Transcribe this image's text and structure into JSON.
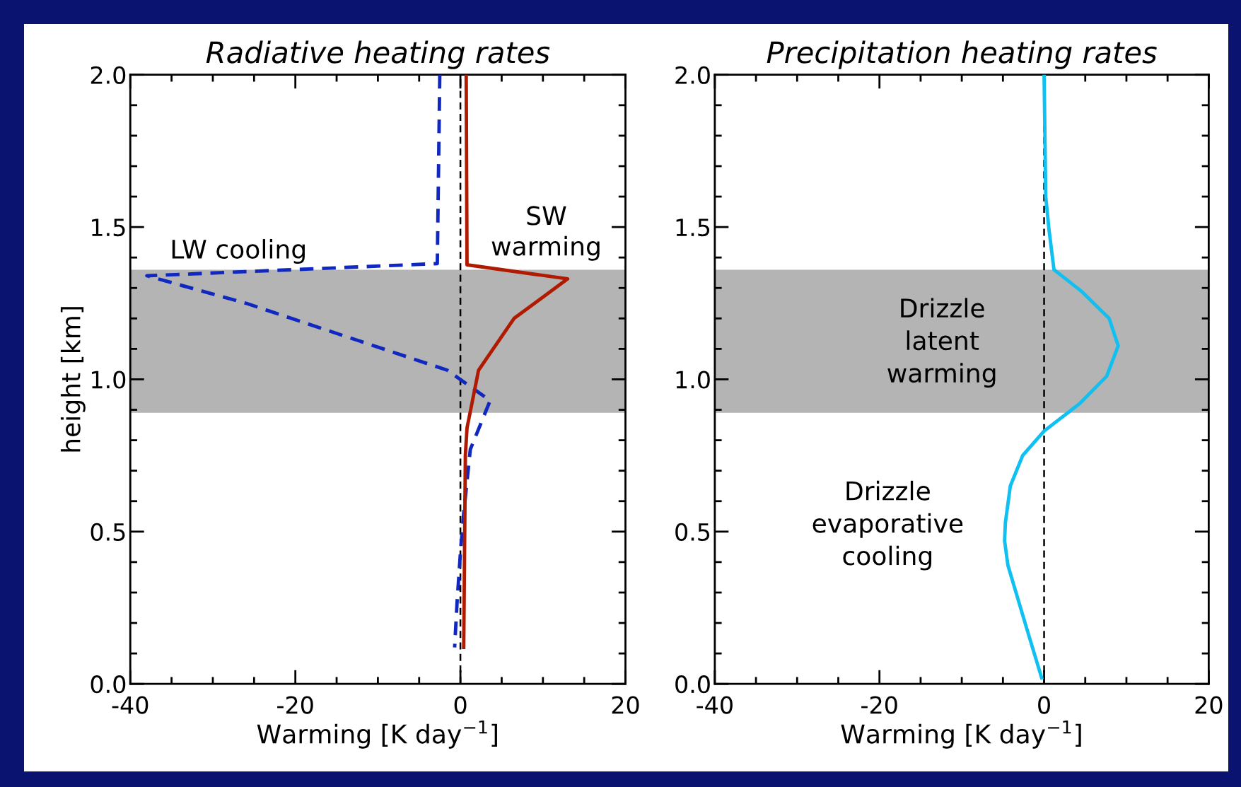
{
  "chart_data": [
    {
      "type": "line",
      "title": "Radiative heating rates",
      "xlabel": "Warming [K day$^{−1}$]",
      "ylabel": "height [km]",
      "xlim": [
        -40,
        20
      ],
      "xticks": [
        -40,
        -20,
        0,
        20
      ],
      "ylim": [
        0,
        2
      ],
      "yticks": [
        {
          "value": 0,
          "label": "0.0"
        },
        {
          "value": 0.5,
          "label": "0.5"
        },
        {
          "value": 1,
          "label": "1.0"
        },
        {
          "value": 1.5,
          "label": "1.5"
        },
        {
          "value": 2,
          "label": "2.0"
        }
      ],
      "grid": false,
      "legend": false,
      "series": [
        {
          "name": "LW cooling",
          "color": "#1028c0",
          "line_style": "dashed",
          "x": [
            -2.5,
            -2.8,
            -38,
            -26,
            -1.6,
            3.6,
            1.2,
            0.4,
            0,
            -0.4,
            -0.7
          ],
          "values": [
            2.0,
            1.38,
            1.34,
            1.25,
            1.03,
            0.93,
            0.77,
            0.56,
            0.43,
            0.27,
            0.12
          ]
        },
        {
          "name": "SW warming",
          "color": "#b01a00",
          "line_style": "solid",
          "x": [
            0.7,
            0.8,
            13,
            6.5,
            2.2,
            0.8,
            0.6,
            0.4
          ],
          "values": [
            2.0,
            1.376,
            1.33,
            1.2,
            1.03,
            0.84,
            0.75,
            0.12
          ]
        }
      ],
      "ref_lines": [
        {
          "axis": "x",
          "value": 0,
          "color": "#000000",
          "line_style": "dashed"
        }
      ],
      "bands": [
        {
          "axis": "y",
          "from": 0.89,
          "to": 1.36,
          "color": "#b4b4b4"
        }
      ]
    },
    {
      "type": "line",
      "title": "Precipitation heating rates",
      "xlabel": "Warming [K day$^{−1}$]",
      "xlim": [
        -40,
        20
      ],
      "xticks": [
        -40,
        -20,
        0,
        20
      ],
      "ylim": [
        0,
        2
      ],
      "yticks": [
        {
          "value": 0,
          "label": "0.0"
        },
        {
          "value": 0.5,
          "label": "0.5"
        },
        {
          "value": 1,
          "label": "1.0"
        },
        {
          "value": 1.5,
          "label": "1.5"
        },
        {
          "value": 2,
          "label": "2.0"
        }
      ],
      "grid": false,
      "legend": false,
      "series": [
        {
          "color": "#10c0f0",
          "line_style": "solid",
          "x": [
            0,
            0.2,
            0.6,
            1.2,
            4.5,
            7.9,
            9,
            7.6,
            4.3,
            0,
            -2.6,
            -4.1,
            -4.7,
            -4.8,
            -4.4,
            -2.2,
            -0.3
          ],
          "values": [
            2.0,
            1.6,
            1.49,
            1.36,
            1.29,
            1.2,
            1.11,
            1.01,
            0.92,
            0.83,
            0.75,
            0.65,
            0.53,
            0.47,
            0.39,
            0.19,
            0.02
          ]
        }
      ],
      "ref_lines": [
        {
          "axis": "x",
          "value": 0,
          "color": "#000000",
          "line_style": "dashed"
        }
      ],
      "bands": [
        {
          "axis": "y",
          "from": 0.89,
          "to": 1.36,
          "color": "#b4b4b4"
        }
      ],
      "annotations": [
        "Drizzle\nlatent\nwarming",
        "Drizzle\nevaporative\ncooling"
      ]
    }
  ]
}
